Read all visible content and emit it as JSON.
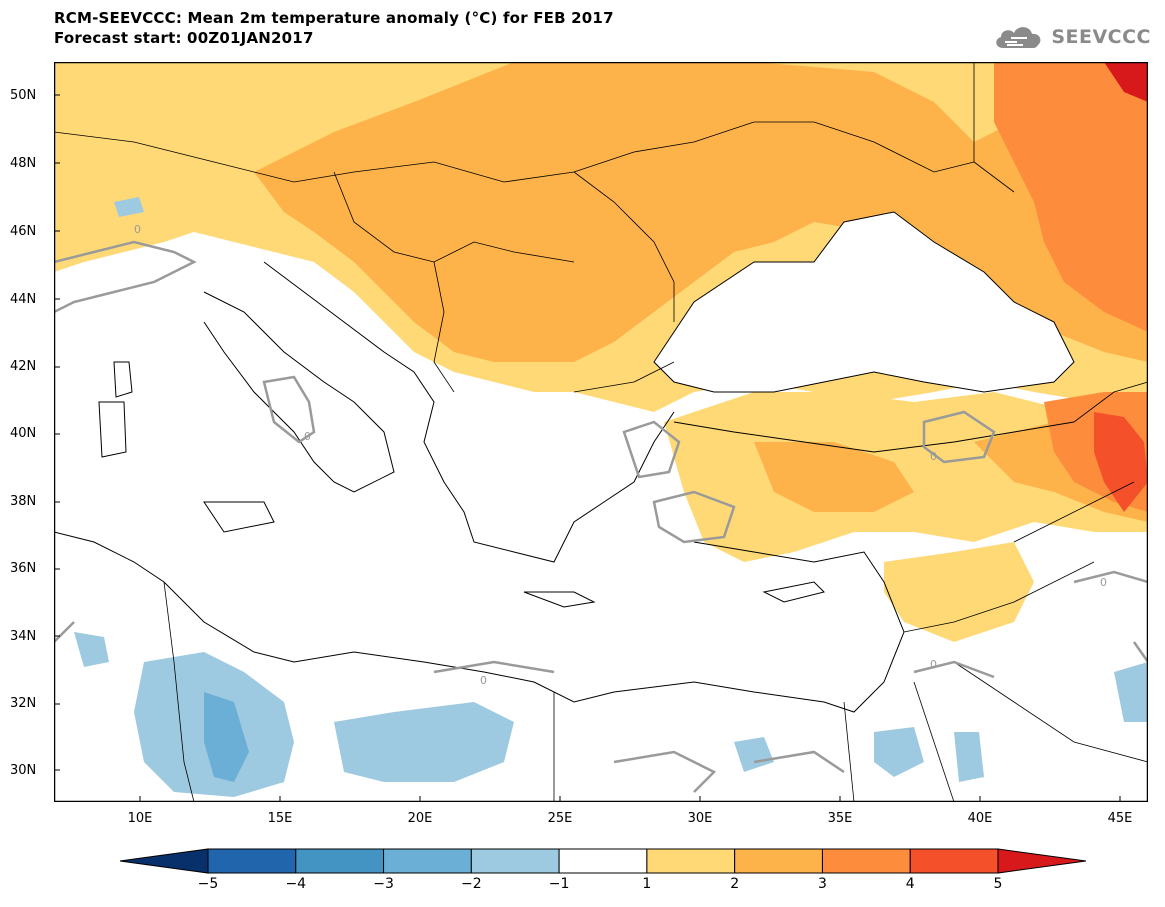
{
  "header": {
    "title": "RCM-SEEVCCC: Mean 2m temperature anomaly (°C) for FEB 2017",
    "subtitle": "Forecast start: 00Z01JAN2017"
  },
  "logo": {
    "text": "SEEVCCC",
    "icon": "cloud-icon"
  },
  "axes": {
    "lat_ticks": [
      "50N",
      "48N",
      "46N",
      "44N",
      "42N",
      "40N",
      "38N",
      "36N",
      "34N",
      "32N",
      "30N"
    ],
    "lon_ticks": [
      "10E",
      "15E",
      "20E",
      "25E",
      "30E",
      "35E",
      "40E",
      "45E"
    ]
  },
  "contour_label": "0",
  "colorbar": {
    "labels": [
      "−5",
      "−4",
      "−3",
      "−2",
      "−1",
      "1",
      "2",
      "3",
      "4",
      "5"
    ],
    "colors": [
      "#08306b",
      "#2166ac",
      "#4393c3",
      "#6baed6",
      "#9ecae1",
      "#ffffff",
      "#fed976",
      "#fdb24a",
      "#fd8d3c",
      "#f4502a",
      "#d7191c"
    ]
  }
}
